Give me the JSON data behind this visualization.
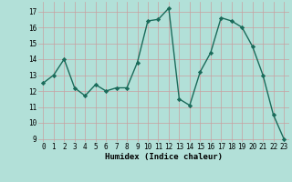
{
  "x": [
    0,
    1,
    2,
    3,
    4,
    5,
    6,
    7,
    8,
    9,
    10,
    11,
    12,
    13,
    14,
    15,
    16,
    17,
    18,
    19,
    20,
    21,
    22,
    23
  ],
  "y": [
    12.5,
    13.0,
    14.0,
    12.2,
    11.7,
    12.4,
    12.0,
    12.2,
    12.2,
    13.8,
    16.4,
    16.5,
    17.2,
    11.5,
    11.1,
    13.2,
    14.4,
    16.6,
    16.4,
    16.0,
    14.8,
    13.0,
    10.5,
    9.0
  ],
  "line_color": "#1a6b5a",
  "bg_color": "#b2e0d8",
  "grid_color": "#c8a0a0",
  "xlabel": "Humidex (Indice chaleur)",
  "ylim": [
    8.8,
    17.6
  ],
  "xlim": [
    -0.5,
    23.5
  ],
  "yticks": [
    9,
    10,
    11,
    12,
    13,
    14,
    15,
    16,
    17
  ],
  "xticks": [
    0,
    1,
    2,
    3,
    4,
    5,
    6,
    7,
    8,
    9,
    10,
    11,
    12,
    13,
    14,
    15,
    16,
    17,
    18,
    19,
    20,
    21,
    22,
    23
  ],
  "marker": "D",
  "markersize": 2.2,
  "linewidth": 1.0,
  "tick_fontsize": 5.5,
  "xlabel_fontsize": 6.5
}
